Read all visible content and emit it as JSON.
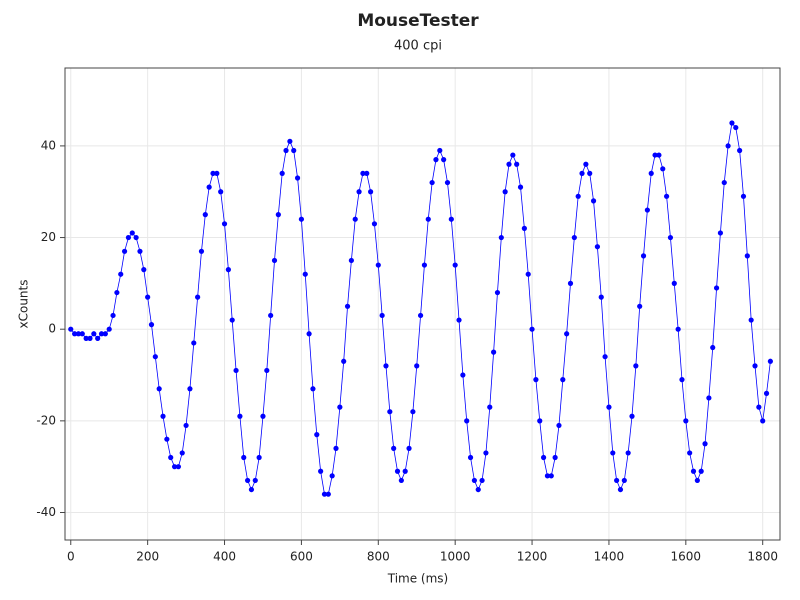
{
  "chart_data": {
    "type": "scatter",
    "title": "MouseTester",
    "subtitle": "400 cpi",
    "x_label": "Time (ms)",
    "y_label": "xCounts",
    "xlim": [
      -15,
      1845
    ],
    "ylim": [
      -46,
      57
    ],
    "xticks": [
      0,
      200,
      400,
      600,
      800,
      1000,
      1200,
      1400,
      1600,
      1800
    ],
    "yticks": [
      -40,
      -20,
      0,
      20,
      40
    ],
    "grid": true,
    "series": [
      {
        "color": "#0000ff",
        "x": [
          0,
          10,
          20,
          30,
          40,
          50,
          60,
          70,
          80,
          90,
          100,
          110,
          120,
          130,
          140,
          150,
          160,
          170,
          180,
          190,
          200,
          210,
          220,
          230,
          240,
          250,
          260,
          270,
          280,
          290,
          300,
          310,
          320,
          330,
          340,
          350,
          360,
          370,
          380,
          390,
          400,
          410,
          420,
          430,
          440,
          450,
          460,
          470,
          480,
          490,
          500,
          510,
          520,
          530,
          540,
          550,
          560,
          570,
          580,
          590,
          600,
          610,
          620,
          630,
          640,
          650,
          660,
          670,
          680,
          690,
          700,
          710,
          720,
          730,
          740,
          750,
          760,
          770,
          780,
          790,
          800,
          810,
          820,
          830,
          840,
          850,
          860,
          870,
          880,
          890,
          900,
          910,
          920,
          930,
          940,
          950,
          960,
          970,
          980,
          990,
          1000,
          1010,
          1020,
          1030,
          1040,
          1050,
          1060,
          1070,
          1080,
          1090,
          1100,
          1110,
          1120,
          1130,
          1140,
          1150,
          1160,
          1170,
          1180,
          1190,
          1200,
          1210,
          1220,
          1230,
          1240,
          1250,
          1260,
          1270,
          1280,
          1290,
          1300,
          1310,
          1320,
          1330,
          1340,
          1350,
          1360,
          1370,
          1380,
          1390,
          1400,
          1410,
          1420,
          1430,
          1440,
          1450,
          1460,
          1470,
          1480,
          1490,
          1500,
          1510,
          1520,
          1530,
          1540,
          1550,
          1560,
          1570,
          1580,
          1590,
          1600,
          1610,
          1620,
          1630,
          1640,
          1650,
          1660,
          1670,
          1680,
          1690,
          1700,
          1710,
          1720,
          1730,
          1740,
          1750,
          1760,
          1770,
          1780,
          1790,
          1800,
          1810,
          1820
        ],
        "values": [
          0,
          -1,
          -1,
          -1,
          -2,
          -2,
          -1,
          -2,
          -1,
          -1,
          0,
          3,
          8,
          12,
          17,
          20,
          21,
          20,
          17,
          13,
          7,
          1,
          -6,
          -13,
          -19,
          -24,
          -28,
          -30,
          -30,
          -27,
          -21,
          -13,
          -3,
          7,
          17,
          25,
          31,
          34,
          34,
          30,
          23,
          13,
          2,
          -9,
          -19,
          -28,
          -33,
          -35,
          -33,
          -28,
          -19,
          -9,
          3,
          15,
          25,
          34,
          39,
          41,
          39,
          33,
          24,
          12,
          -1,
          -13,
          -23,
          -31,
          -36,
          -36,
          -32,
          -26,
          -17,
          -7,
          5,
          15,
          24,
          30,
          34,
          34,
          30,
          23,
          14,
          3,
          -8,
          -18,
          -26,
          -31,
          -33,
          -31,
          -26,
          -18,
          -8,
          3,
          14,
          24,
          32,
          37,
          39,
          37,
          32,
          24,
          14,
          2,
          -10,
          -20,
          -28,
          -33,
          -35,
          -33,
          -27,
          -17,
          -5,
          8,
          20,
          30,
          36,
          38,
          36,
          31,
          22,
          12,
          0,
          -11,
          -20,
          -28,
          -32,
          -32,
          -28,
          -21,
          -11,
          -1,
          10,
          20,
          29,
          34,
          36,
          34,
          28,
          18,
          7,
          -6,
          -17,
          -27,
          -33,
          -35,
          -33,
          -27,
          -19,
          -8,
          5,
          16,
          26,
          34,
          38,
          38,
          35,
          29,
          20,
          10,
          0,
          -11,
          -20,
          -27,
          -31,
          -33,
          -31,
          -25,
          -15,
          -4,
          9,
          21,
          32,
          40,
          45,
          44,
          39,
          29,
          16,
          2,
          -8,
          -17,
          -20,
          -14,
          -7
        ]
      }
    ]
  }
}
